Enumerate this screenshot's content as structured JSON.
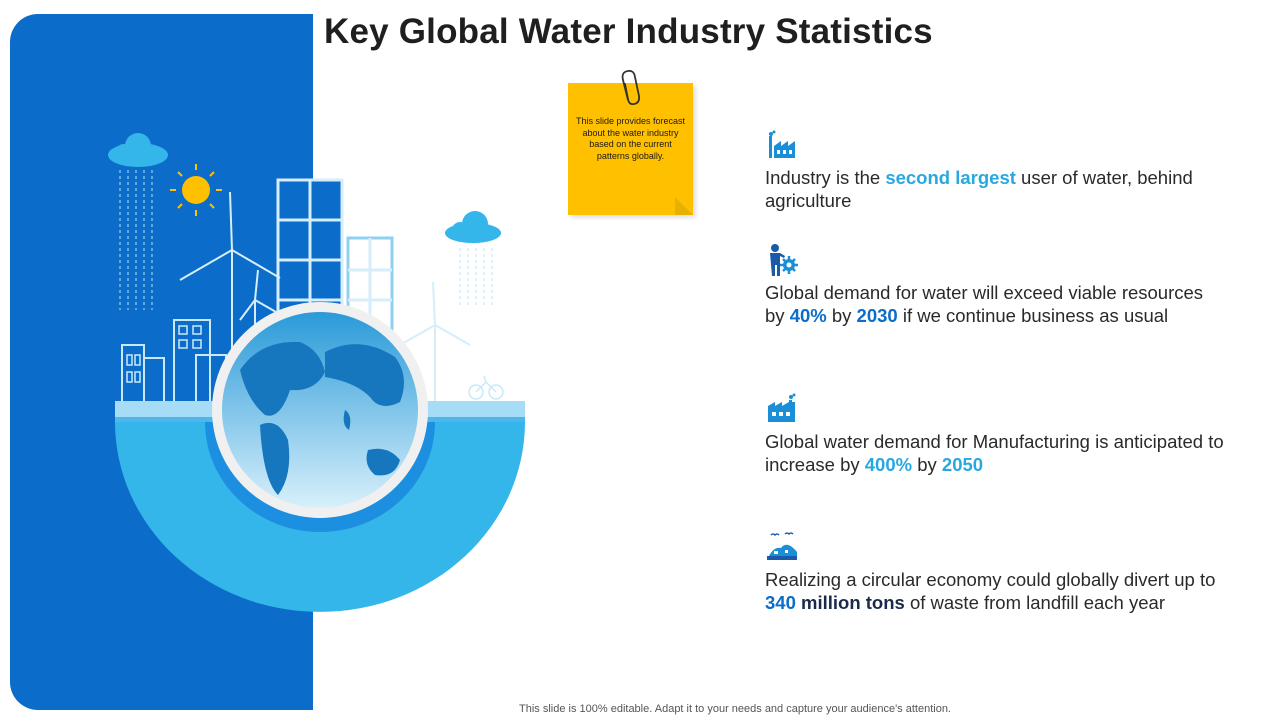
{
  "title": "Key Global Water Industry Statistics",
  "sticky_note": {
    "text": "This slide provides forecast about the water industry based on the current patterns globally."
  },
  "stats": [
    {
      "icon": "factory-icon",
      "parts": [
        {
          "text": "Industry is the ",
          "style": "normal"
        },
        {
          "text": "second largest",
          "style": "light"
        },
        {
          "text": " user of water, behind agriculture",
          "style": "normal"
        }
      ]
    },
    {
      "icon": "person-gear-icon",
      "parts": [
        {
          "text": "Global demand for water will exceed viable resources by ",
          "style": "normal"
        },
        {
          "text": "40%",
          "style": "dark"
        },
        {
          "text": " by ",
          "style": "normal"
        },
        {
          "text": "2030",
          "style": "dark"
        },
        {
          "text": " if we continue business as usual",
          "style": "normal"
        }
      ]
    },
    {
      "icon": "manufacturing-icon",
      "parts": [
        {
          "text": "Global water demand for Manufacturing is anticipated to increase by ",
          "style": "normal"
        },
        {
          "text": "400%",
          "style": "light"
        },
        {
          "text": " by ",
          "style": "normal"
        },
        {
          "text": "2050",
          "style": "light"
        }
      ]
    },
    {
      "icon": "landfill-icon",
      "parts": [
        {
          "text": "Realizing a circular economy could globally divert up to ",
          "style": "normal"
        },
        {
          "text": "340",
          "style": "dark"
        },
        {
          "text": " ",
          "style": "normal"
        },
        {
          "text": "million tons",
          "style": "black"
        },
        {
          "text": " of waste from landfill each year",
          "style": "normal"
        }
      ]
    }
  ],
  "footer": "This slide is 100% editable. Adapt it to your needs and capture your audience's attention.",
  "colors": {
    "panel_blue": "#0b6cc9",
    "accent_light": "#29a8e0",
    "accent_dark": "#0b6cc9",
    "sticky": "#ffc000"
  }
}
